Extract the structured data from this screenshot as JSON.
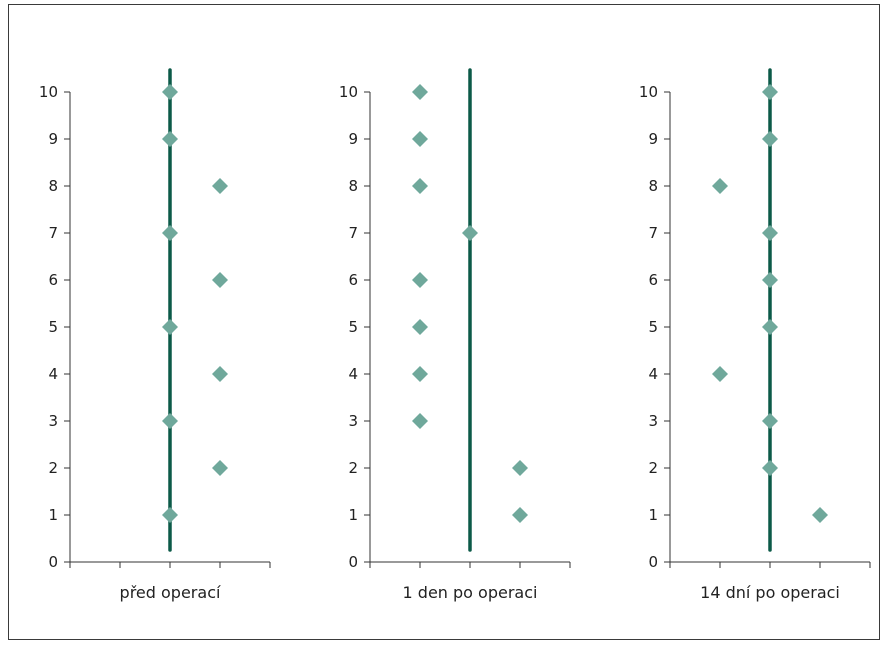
{
  "chart_data": [
    {
      "type": "scatter",
      "category_label": "před operací",
      "ylim": [
        0,
        10
      ],
      "yticks": [
        "0",
        "1",
        "2",
        "3",
        "4",
        "5",
        "6",
        "7",
        "8",
        "9",
        "10"
      ],
      "points": [
        {
          "x": 0,
          "y": 10
        },
        {
          "x": 0,
          "y": 9
        },
        {
          "x": 0,
          "y": 7
        },
        {
          "x": 0,
          "y": 5
        },
        {
          "x": 0,
          "y": 3
        },
        {
          "x": 0,
          "y": 1
        },
        {
          "x": 1,
          "y": 8
        },
        {
          "x": 1,
          "y": 6
        },
        {
          "x": 1,
          "y": 4
        },
        {
          "x": 1,
          "y": 2
        }
      ]
    },
    {
      "type": "scatter",
      "category_label": "1 den po operaci",
      "ylim": [
        0,
        10
      ],
      "yticks": [
        "0",
        "1",
        "2",
        "3",
        "4",
        "5",
        "6",
        "7",
        "8",
        "9",
        "10"
      ],
      "points": [
        {
          "x": -1,
          "y": 10
        },
        {
          "x": -1,
          "y": 9
        },
        {
          "x": -1,
          "y": 8
        },
        {
          "x": -1,
          "y": 6
        },
        {
          "x": -1,
          "y": 5
        },
        {
          "x": -1,
          "y": 4
        },
        {
          "x": -1,
          "y": 3
        },
        {
          "x": 0,
          "y": 7
        },
        {
          "x": 1,
          "y": 2
        },
        {
          "x": 1,
          "y": 1
        }
      ]
    },
    {
      "type": "scatter",
      "category_label": "14 dní po operaci",
      "ylim": [
        0,
        10
      ],
      "yticks": [
        "0",
        "1",
        "2",
        "3",
        "4",
        "5",
        "6",
        "7",
        "8",
        "9",
        "10"
      ],
      "points": [
        {
          "x": -1,
          "y": 8
        },
        {
          "x": -1,
          "y": 4
        },
        {
          "x": 0,
          "y": 10
        },
        {
          "x": 0,
          "y": 9
        },
        {
          "x": 0,
          "y": 7
        },
        {
          "x": 0,
          "y": 6
        },
        {
          "x": 0,
          "y": 5
        },
        {
          "x": 0,
          "y": 3
        },
        {
          "x": 0,
          "y": 2
        },
        {
          "x": 1,
          "y": 1
        }
      ]
    }
  ],
  "colors": {
    "marker": "#6fa89b",
    "line": "#0c5a48",
    "axis": "#333333"
  }
}
